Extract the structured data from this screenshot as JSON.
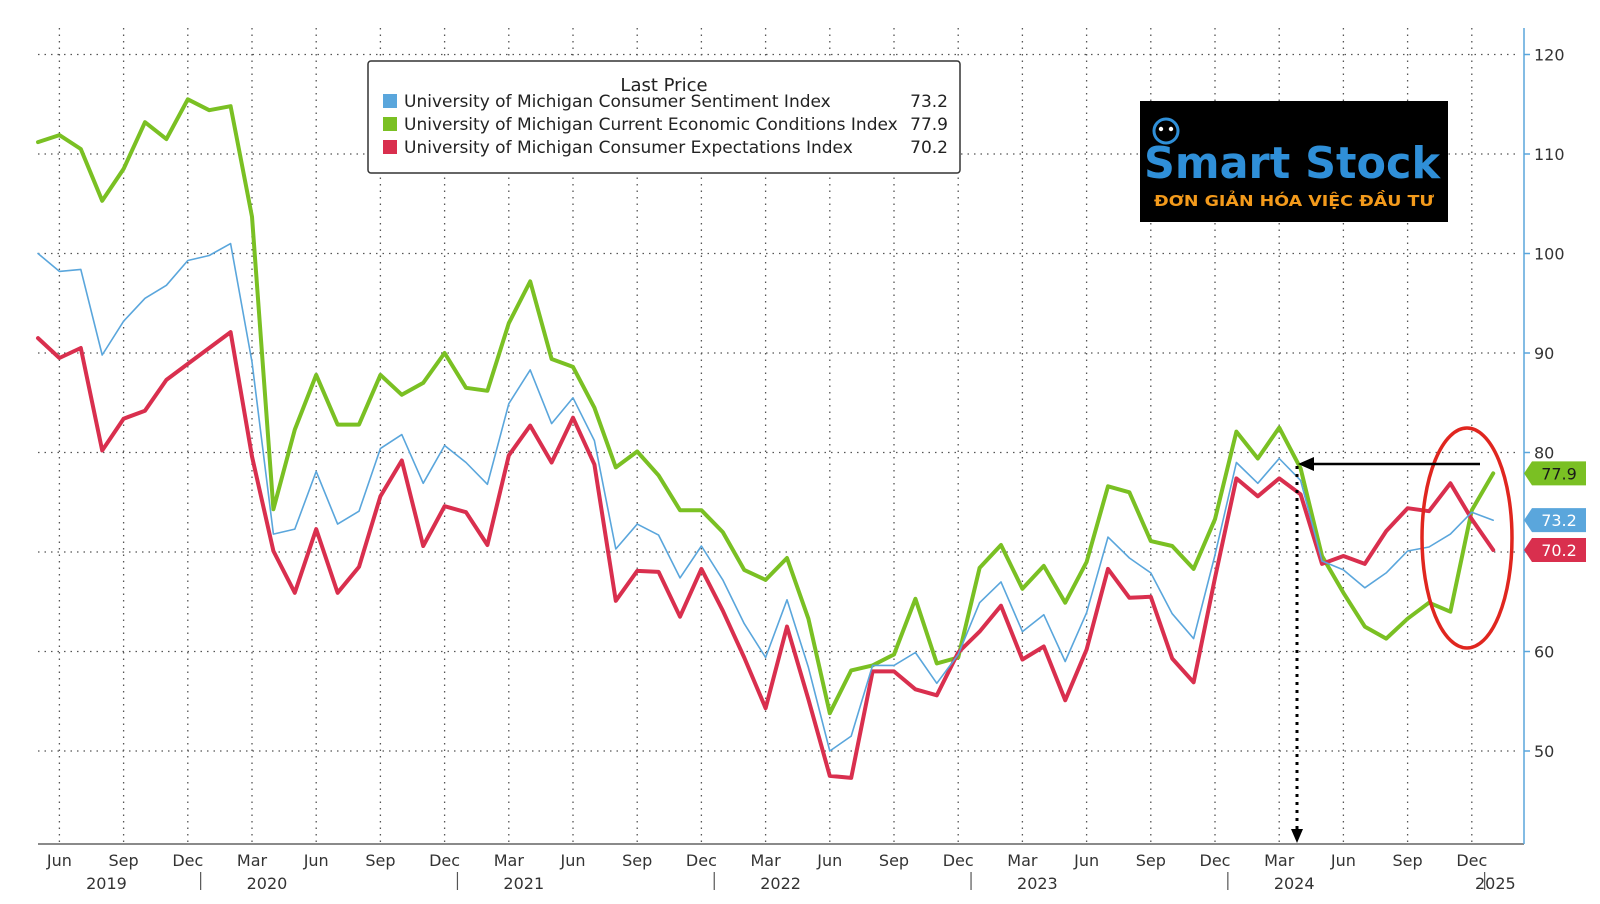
{
  "chart_data": {
    "type": "line",
    "legend": {
      "title": "Last Price",
      "placement": "top-center"
    },
    "x_start": "2019-05",
    "x_end": "2025-01",
    "x_tick_labels": [
      "Jun",
      "Sep",
      "Dec",
      "Mar",
      "Jun",
      "Sep",
      "Dec",
      "Mar",
      "Jun",
      "Sep",
      "Dec",
      "Mar",
      "Jun",
      "Sep",
      "Dec",
      "Mar",
      "Jun",
      "Sep",
      "Dec",
      "Mar",
      "Jun",
      "Sep",
      "Dec"
    ],
    "year_labels": [
      "2019",
      "2020",
      "2021",
      "2022",
      "2023",
      "2024",
      "2025"
    ],
    "y_ticks": [
      50,
      60,
      70,
      80,
      90,
      100,
      110,
      120
    ],
    "y_range": [
      40,
      122
    ],
    "grid": true,
    "series": [
      {
        "name": "University of Michigan Consumer Sentiment Index",
        "last": "73.2",
        "color": "#5aa6dc",
        "values": [
          100.0,
          98.2,
          98.4,
          89.8,
          93.2,
          95.5,
          96.8,
          99.3,
          99.8,
          101.0,
          89.1,
          71.8,
          72.3,
          78.1,
          72.8,
          74.1,
          80.4,
          81.8,
          76.9,
          80.7,
          79.0,
          76.8,
          84.9,
          88.3,
          82.9,
          85.5,
          81.2,
          70.3,
          72.8,
          71.7,
          67.4,
          70.6,
          67.2,
          62.8,
          59.4,
          65.2,
          58.4,
          50.0,
          51.5,
          58.6,
          58.6,
          59.9,
          56.8,
          59.7,
          64.9,
          67.0,
          62.0,
          63.7,
          59.0,
          63.9,
          71.5,
          69.4,
          67.9,
          63.8,
          61.3,
          69.7,
          79.0,
          76.9,
          79.4,
          77.2,
          69.1,
          68.2,
          66.4,
          67.9,
          70.1,
          70.5,
          71.8,
          74.0,
          73.2
        ]
      },
      {
        "name": "University of Michigan Current Economic Conditions Index",
        "last": "77.9",
        "color": "#7ac023",
        "values": [
          111.2,
          111.9,
          110.5,
          105.3,
          108.5,
          113.2,
          111.5,
          115.5,
          114.4,
          114.8,
          103.7,
          74.3,
          82.3,
          87.8,
          82.8,
          82.8,
          87.8,
          85.8,
          87.0,
          90.0,
          86.5,
          86.2,
          93.0,
          97.2,
          89.4,
          88.6,
          84.5,
          78.5,
          80.1,
          77.7,
          74.2,
          74.2,
          72.0,
          68.2,
          67.2,
          69.4,
          63.3,
          53.8,
          58.1,
          58.6,
          59.7,
          65.3,
          58.8,
          59.4,
          68.4,
          70.7,
          66.3,
          68.6,
          64.9,
          69.0,
          76.6,
          76.0,
          71.1,
          70.6,
          68.3,
          73.3,
          82.1,
          79.4,
          82.5,
          78.4,
          69.6,
          65.9,
          62.5,
          61.3,
          63.3,
          64.9,
          64.0,
          74.2,
          77.9
        ]
      },
      {
        "name": "University of Michigan Consumer Expectations Index",
        "last": "70.2",
        "color": "#d92f4e",
        "values": [
          91.5,
          89.5,
          90.5,
          80.2,
          83.4,
          84.2,
          87.3,
          88.9,
          90.5,
          92.1,
          79.6,
          70.1,
          65.9,
          72.3,
          65.9,
          68.5,
          75.6,
          79.2,
          70.6,
          74.6,
          74.0,
          70.7,
          79.7,
          82.7,
          79.0,
          83.5,
          78.8,
          65.1,
          68.1,
          68.0,
          63.5,
          68.3,
          64.1,
          59.4,
          54.3,
          62.5,
          55.2,
          47.5,
          47.3,
          58.0,
          58.0,
          56.2,
          55.6,
          59.9,
          62.0,
          64.6,
          59.2,
          60.5,
          55.1,
          60.2,
          68.3,
          65.4,
          65.5,
          59.3,
          56.9,
          67.4,
          77.4,
          75.6,
          77.4,
          75.8,
          68.8,
          69.6,
          68.8,
          72.1,
          74.4,
          74.1,
          76.9,
          73.3,
          70.2
        ]
      }
    ],
    "annotations": {
      "highlight_ellipse_color": "#e0261f",
      "arrow_color": "#000000"
    }
  },
  "logo": {
    "main": "Smart Stock",
    "sub": "ĐƠN GIẢN HÓA VIỆC ĐẦU TƯ"
  }
}
